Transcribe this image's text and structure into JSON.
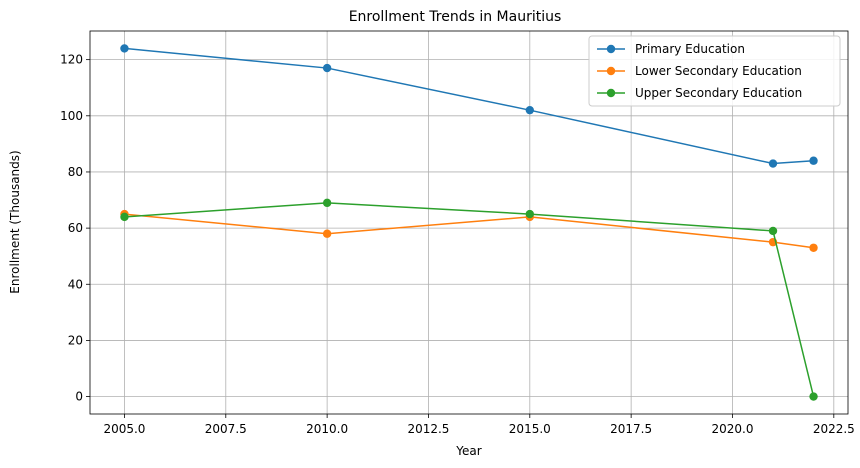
{
  "chart_data": {
    "type": "line",
    "title": "Enrollment Trends in Mauritius",
    "xlabel": "Year",
    "ylabel": "Enrollment (Thousands)",
    "x": [
      2005,
      2010,
      2015,
      2021,
      2022
    ],
    "xlim": [
      2004.15,
      2022.85
    ],
    "ylim": [
      -6.2,
      130.2
    ],
    "xticks": [
      2005.0,
      2007.5,
      2010.0,
      2012.5,
      2015.0,
      2017.5,
      2020.0,
      2022.5
    ],
    "xtick_labels": [
      "2005.0",
      "2007.5",
      "2010.0",
      "2012.5",
      "2015.0",
      "2017.5",
      "2020.0",
      "2022.5"
    ],
    "yticks": [
      0,
      20,
      40,
      60,
      80,
      100,
      120
    ],
    "ytick_labels": [
      "0",
      "20",
      "40",
      "60",
      "80",
      "100",
      "120"
    ],
    "grid": true,
    "legend_position": "top-right",
    "series": [
      {
        "name": "Primary Education",
        "color": "#1f77b4",
        "values": [
          124,
          117,
          102,
          83,
          84
        ]
      },
      {
        "name": "Lower Secondary Education",
        "color": "#ff7f0e",
        "values": [
          65,
          58,
          64,
          55,
          53
        ]
      },
      {
        "name": "Upper Secondary Education",
        "color": "#2ca02c",
        "values": [
          64,
          69,
          65,
          59,
          0
        ]
      }
    ]
  }
}
